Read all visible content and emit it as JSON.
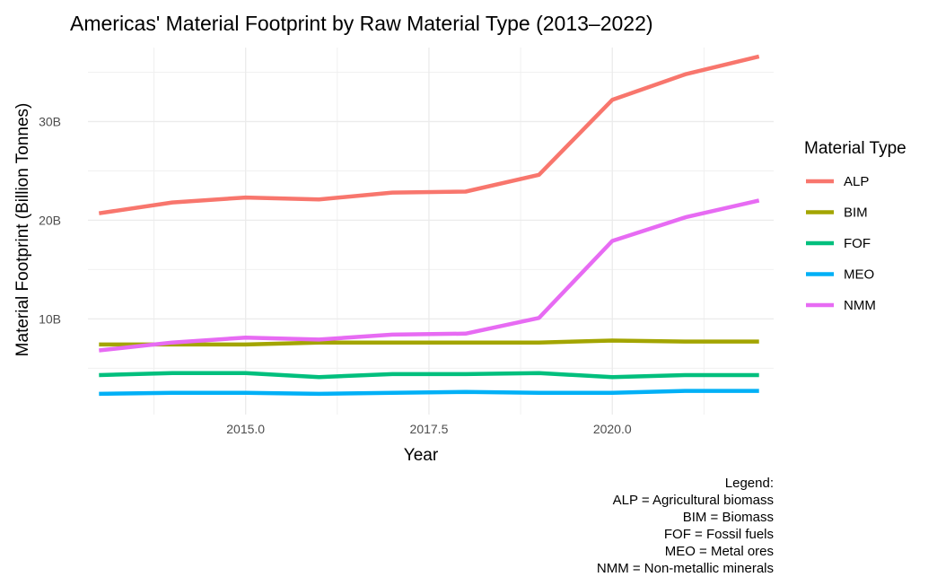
{
  "chart_data": {
    "type": "line",
    "title": "Americas' Material Footprint by Raw Material Type (2013–2022)",
    "xlabel": "Year",
    "ylabel": "Material Footprint (Billion Tonnes)",
    "x": [
      2013,
      2014,
      2015,
      2016,
      2017,
      2018,
      2019,
      2020,
      2021,
      2022
    ],
    "xlim": [
      2012.85,
      2022.2
    ],
    "ylim": [
      0.3,
      37.5
    ],
    "x_ticks": [
      2015.0,
      2017.5,
      2020.0
    ],
    "x_tick_labels": [
      "2015.0",
      "2017.5",
      "2020.0"
    ],
    "y_ticks": [
      10,
      20,
      30
    ],
    "y_tick_labels": [
      "10B",
      "20B",
      "30B"
    ],
    "grid": true,
    "legend_title": "Material Type",
    "legend_position": "right",
    "series": [
      {
        "name": "ALP",
        "color": "#F8766D",
        "values": [
          20.7,
          21.8,
          22.3,
          22.1,
          22.8,
          22.9,
          24.6,
          32.2,
          34.8,
          36.6
        ]
      },
      {
        "name": "BIM",
        "color": "#A3A500",
        "values": [
          7.4,
          7.4,
          7.4,
          7.6,
          7.6,
          7.6,
          7.6,
          7.8,
          7.7,
          7.7
        ]
      },
      {
        "name": "FOF",
        "color": "#00BF7D",
        "values": [
          4.3,
          4.5,
          4.5,
          4.1,
          4.4,
          4.4,
          4.5,
          4.1,
          4.3,
          4.3
        ]
      },
      {
        "name": "MEO",
        "color": "#00B0F6",
        "values": [
          2.4,
          2.5,
          2.5,
          2.4,
          2.5,
          2.6,
          2.5,
          2.5,
          2.7,
          2.7
        ]
      },
      {
        "name": "NMM",
        "color": "#E76BF3",
        "values": [
          6.8,
          7.6,
          8.1,
          7.9,
          8.4,
          8.5,
          10.1,
          17.9,
          20.3,
          22.0
        ]
      }
    ],
    "caption": [
      "Legend:",
      "ALP = Agricultural biomass",
      "BIM = Biomass",
      "FOF = Fossil fuels",
      "MEO = Metal ores",
      "NMM = Non-metallic minerals"
    ]
  }
}
